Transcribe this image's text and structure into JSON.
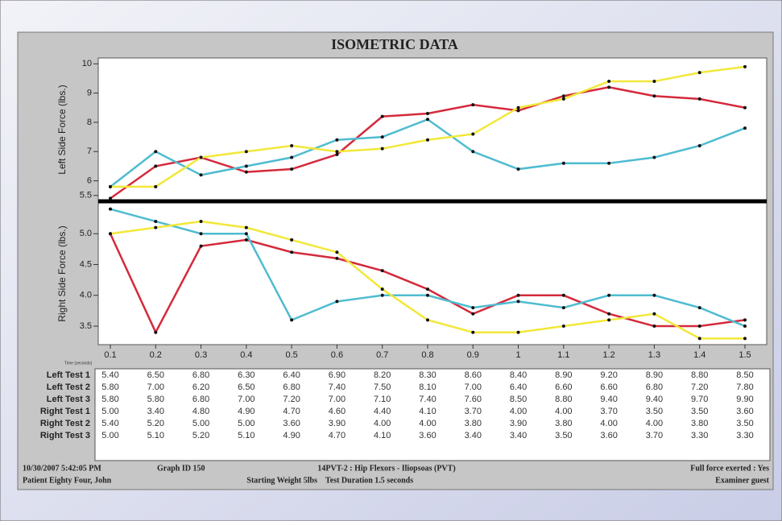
{
  "chart_data": [
    {
      "type": "line",
      "title": "ISOMETRIC DATA",
      "y_label": "Left Side Force (lbs.)",
      "ylim": [
        5.3,
        10.2
      ],
      "yticks": [
        5.5,
        6,
        7,
        8,
        9,
        10
      ],
      "series": [
        {
          "name": "Left Test 1",
          "color": "#d42a3c",
          "values": [
            5.4,
            6.5,
            6.8,
            6.3,
            6.4,
            6.9,
            8.2,
            8.3,
            8.6,
            8.4,
            8.9,
            9.2,
            8.9,
            8.8,
            8.5
          ],
          "value_labels": [
            "5.40",
            "6.50",
            "6.80",
            "6.30",
            "6.40",
            "6.90",
            "8.20",
            "8.30",
            "8.60",
            "8.40",
            "8.90",
            "9.20",
            "8.90",
            "8.80",
            "8.50"
          ]
        },
        {
          "name": "Left Test 2",
          "color": "#4fbcd0",
          "values": [
            5.8,
            7.0,
            6.2,
            6.5,
            6.8,
            7.4,
            7.5,
            8.1,
            7.0,
            6.4,
            6.6,
            6.6,
            6.8,
            7.2,
            7.8
          ],
          "value_labels": [
            "5.80",
            "7.00",
            "6.20",
            "6.50",
            "6.80",
            "7.40",
            "7.50",
            "8.10",
            "7.00",
            "6.40",
            "6.60",
            "6.60",
            "6.80",
            "7.20",
            "7.80"
          ]
        },
        {
          "name": "Left Test 3",
          "color": "#f2e83a",
          "values": [
            5.8,
            5.8,
            6.8,
            7.0,
            7.2,
            7.0,
            7.1,
            7.4,
            7.6,
            8.5,
            8.8,
            9.4,
            9.4,
            9.7,
            9.9
          ],
          "value_labels": [
            "5.80",
            "5.80",
            "6.80",
            "7.00",
            "7.20",
            "7.00",
            "7.10",
            "7.40",
            "7.60",
            "8.50",
            "8.80",
            "9.40",
            "9.40",
            "9.70",
            "9.90"
          ]
        }
      ]
    },
    {
      "type": "line",
      "y_label": "Right Side Force (lbs.)",
      "x_label": "Time (seconds)",
      "categories": [
        "0.1",
        "0.2",
        "0.3",
        "0.4",
        "0.5",
        "0.6",
        "0.7",
        "0.8",
        "0.9",
        "1",
        "1.1",
        "1.2",
        "1.3",
        "1.4",
        "1.5"
      ],
      "ylim": [
        3.2,
        5.5
      ],
      "yticks": [
        {
          "value": 5,
          "label": "5.0"
        },
        4.5,
        {
          "value": 4,
          "label": "4.0"
        },
        3.5
      ],
      "series": [
        {
          "name": "Right Test 1",
          "color": "#d42a3c",
          "values": [
            5.0,
            3.4,
            4.8,
            4.9,
            4.7,
            4.6,
            4.4,
            4.1,
            3.7,
            4.0,
            4.0,
            3.7,
            3.5,
            3.5,
            3.6
          ],
          "value_labels": [
            "5.00",
            "3.40",
            "4.80",
            "4.90",
            "4.70",
            "4.60",
            "4.40",
            "4.10",
            "3.70",
            "4.00",
            "4.00",
            "3.70",
            "3.50",
            "3.50",
            "3.60"
          ]
        },
        {
          "name": "Right Test 2",
          "color": "#4fbcd0",
          "values": [
            5.4,
            5.2,
            5.0,
            5.0,
            3.6,
            3.9,
            4.0,
            4.0,
            3.8,
            3.9,
            3.8,
            4.0,
            4.0,
            3.8,
            3.5
          ],
          "value_labels": [
            "5.40",
            "5.20",
            "5.00",
            "5.00",
            "3.60",
            "3.90",
            "4.00",
            "4.00",
            "3.80",
            "3.90",
            "3.80",
            "4.00",
            "4.00",
            "3.80",
            "3.50"
          ]
        },
        {
          "name": "Right Test 3",
          "color": "#f2e83a",
          "values": [
            5.0,
            5.1,
            5.2,
            5.1,
            4.9,
            4.7,
            4.1,
            3.6,
            3.4,
            3.4,
            3.5,
            3.6,
            3.7,
            3.3,
            3.3
          ],
          "value_labels": [
            "5.00",
            "5.10",
            "5.20",
            "5.10",
            "4.90",
            "4.70",
            "4.10",
            "3.60",
            "3.40",
            "3.40",
            "3.50",
            "3.60",
            "3.70",
            "3.30",
            "3.30"
          ]
        }
      ]
    }
  ],
  "footer": {
    "datetime": "10/30/2007 5:42:05 PM",
    "graph_id": "Graph ID 150",
    "test": "14PVT-2 : Hip Flexors - Iliopsoas (PVT)",
    "full_force": "Full force exerted : Yes",
    "patient": "Patient Eighty Four, John",
    "weight": "Starting Weight 5lbs",
    "duration": "Test Duration 1.5 seconds",
    "examiner": "Examiner guest"
  }
}
